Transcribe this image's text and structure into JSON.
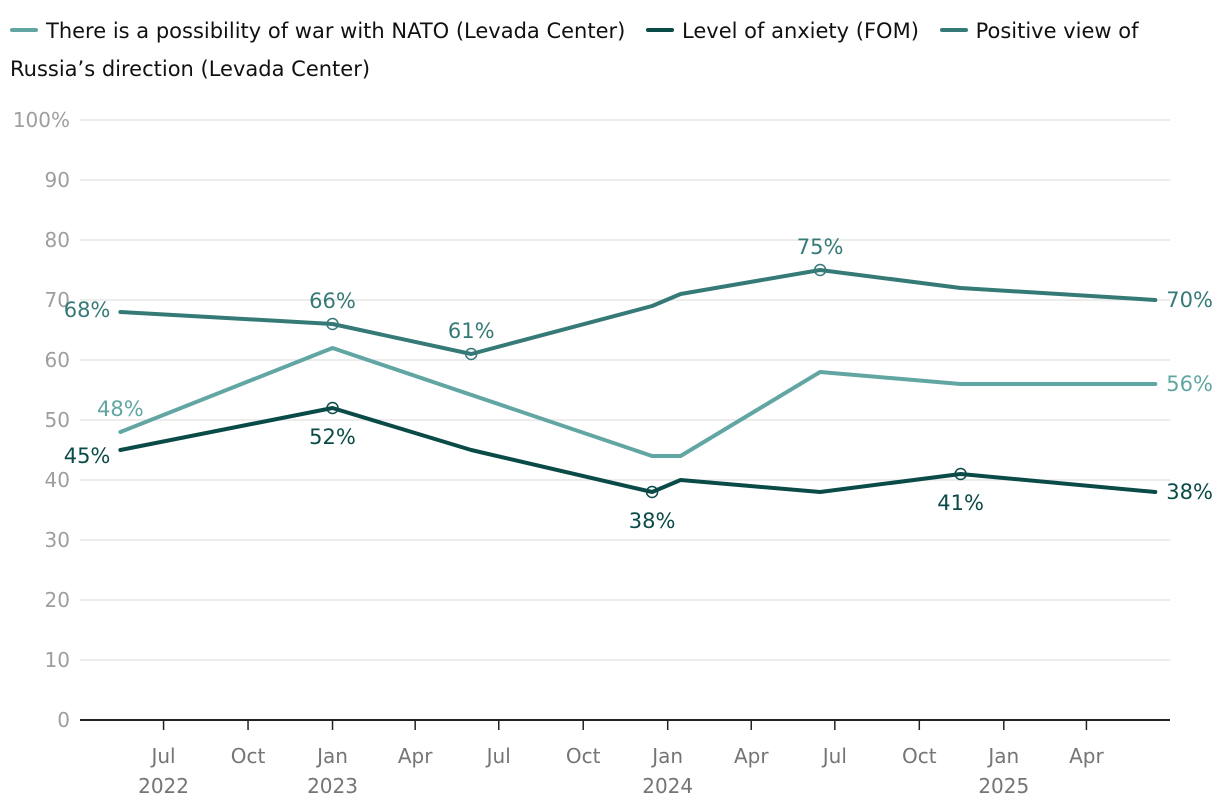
{
  "chart_data": {
    "type": "line",
    "title": "",
    "xlabel": "",
    "ylabel": "",
    "ylim": [
      0,
      100
    ],
    "y_ticks": [
      "0",
      "10",
      "20",
      "30",
      "40",
      "50",
      "60",
      "70",
      "80",
      "90",
      "100%"
    ],
    "y_tick_values": [
      0,
      10,
      20,
      30,
      40,
      50,
      60,
      70,
      80,
      90,
      100
    ],
    "x_range": [
      "2022-04-01",
      "2025-07-01"
    ],
    "x_ticks": [
      {
        "date": "2022-07-01",
        "label": "Jul",
        "year": "2022"
      },
      {
        "date": "2022-10-01",
        "label": "Oct",
        "year": ""
      },
      {
        "date": "2023-01-01",
        "label": "Jan",
        "year": "2023"
      },
      {
        "date": "2023-04-01",
        "label": "Apr",
        "year": ""
      },
      {
        "date": "2023-07-01",
        "label": "Jul",
        "year": ""
      },
      {
        "date": "2023-10-01",
        "label": "Oct",
        "year": ""
      },
      {
        "date": "2024-01-01",
        "label": "Jan",
        "year": "2024"
      },
      {
        "date": "2024-04-01",
        "label": "Apr",
        "year": ""
      },
      {
        "date": "2024-07-01",
        "label": "Jul",
        "year": ""
      },
      {
        "date": "2024-10-01",
        "label": "Oct",
        "year": ""
      },
      {
        "date": "2025-01-01",
        "label": "Jan",
        "year": "2025"
      },
      {
        "date": "2025-04-01",
        "label": "Apr",
        "year": ""
      }
    ],
    "series": [
      {
        "name": "There is a possibility of war with NATO (Levada Center)",
        "color": "#62a6a3",
        "points": [
          {
            "date": "2022-05-15",
            "value": 48,
            "label": "48%",
            "pos": "above"
          },
          {
            "date": "2023-01-01",
            "value": 62
          },
          {
            "date": "2023-12-15",
            "value": 44
          },
          {
            "date": "2024-01-15",
            "value": 44
          },
          {
            "date": "2024-06-15",
            "value": 58
          },
          {
            "date": "2024-11-15",
            "value": 56
          },
          {
            "date": "2025-06-15",
            "value": 56,
            "label": "56%",
            "pos": "right"
          }
        ]
      },
      {
        "name": "Level of anxiety (FOM)",
        "color": "#0a4b48",
        "points": [
          {
            "date": "2022-05-15",
            "value": 45,
            "label": "45%",
            "pos": "left-below"
          },
          {
            "date": "2023-01-01",
            "value": 52,
            "label": "52%",
            "pos": "below",
            "marker": true
          },
          {
            "date": "2023-06-01",
            "value": 45
          },
          {
            "date": "2023-12-15",
            "value": 38,
            "label": "38%",
            "pos": "below",
            "marker": true
          },
          {
            "date": "2024-01-15",
            "value": 40
          },
          {
            "date": "2024-06-15",
            "value": 38
          },
          {
            "date": "2024-11-15",
            "value": 41,
            "label": "41%",
            "pos": "below",
            "marker": true
          },
          {
            "date": "2025-06-15",
            "value": 38,
            "label": "38%",
            "pos": "right"
          }
        ]
      },
      {
        "name": "Positive view of Russia’s direction (Levada Center)",
        "color": "#357a77",
        "points": [
          {
            "date": "2022-05-15",
            "value": 68,
            "label": "68%",
            "pos": "left"
          },
          {
            "date": "2023-01-01",
            "value": 66,
            "label": "66%",
            "pos": "above",
            "marker": true
          },
          {
            "date": "2023-06-01",
            "value": 61,
            "label": "61%",
            "pos": "above",
            "marker": true
          },
          {
            "date": "2023-12-15",
            "value": 69
          },
          {
            "date": "2024-01-15",
            "value": 71
          },
          {
            "date": "2024-06-15",
            "value": 75,
            "label": "75%",
            "pos": "above",
            "marker": true
          },
          {
            "date": "2024-11-15",
            "value": 72
          },
          {
            "date": "2025-06-15",
            "value": 70,
            "label": "70%",
            "pos": "right"
          }
        ]
      }
    ]
  }
}
